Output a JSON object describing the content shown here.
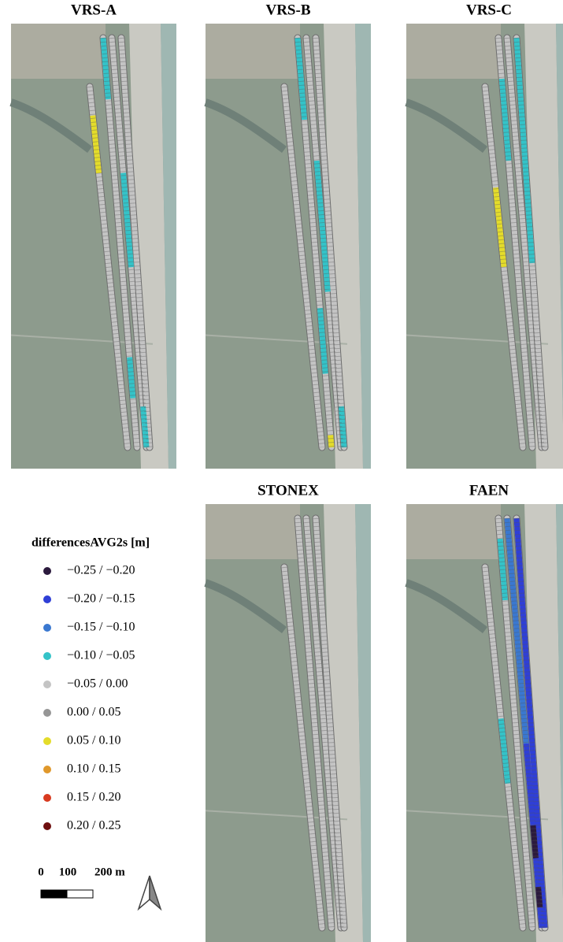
{
  "panels": [
    {
      "title": "VRS-A"
    },
    {
      "title": "VRS-B"
    },
    {
      "title": "VRS-C"
    },
    {
      "title": "STONEX"
    },
    {
      "title": "FAEN"
    }
  ],
  "legend": {
    "title": "differencesAVG2s [m]",
    "items": [
      {
        "label": "−0.25 / −0.20",
        "color": "#2b1a3d"
      },
      {
        "label": "−0.20 / −0.15",
        "color": "#2f3fd6"
      },
      {
        "label": "−0.15 / −0.10",
        "color": "#3a78d0"
      },
      {
        "label": "−0.10 / −0.05",
        "color": "#34c3c8"
      },
      {
        "label": "−0.05 / 0.00",
        "color": "#c4c4c4"
      },
      {
        "label": "0.00 / 0.05",
        "color": "#969696"
      },
      {
        "label": "0.05 / 0.10",
        "color": "#e4dc2a"
      },
      {
        "label": "0.10 / 0.15",
        "color": "#e0982b"
      },
      {
        "label": "0.15 / 0.20",
        "color": "#d83a1f"
      },
      {
        "label": "0.20 / 0.25",
        "color": "#6e0f0f"
      }
    ]
  },
  "scale_bar": {
    "labels": [
      "0",
      "100",
      "200 m"
    ]
  }
}
